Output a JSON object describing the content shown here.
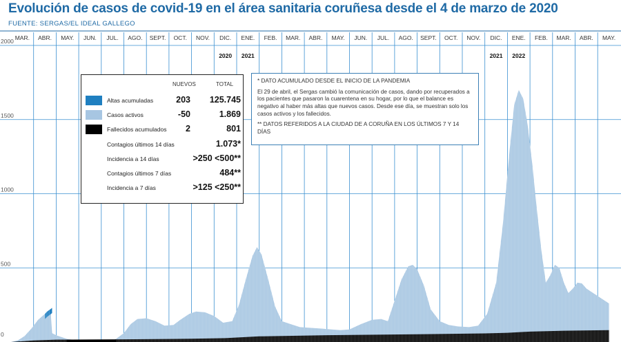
{
  "title": "Evolución de casos de covid-19 en el área sanitaria coruñesa desde el 4 de marzo de 2020",
  "source": "FUENTE: SERGAS/EL IDEAL GALLEGO",
  "colors": {
    "title": "#1f6aa5",
    "altas": "#1f7fc0",
    "activos": "#a7c6e2",
    "fallecidos": "#000000",
    "gridline": "#3a8fd0"
  },
  "legend": {
    "header_nuevos": "NUEVOS",
    "header_total": "TOTAL",
    "rows": [
      {
        "label": "Altas acumuladas",
        "nuevos": "203",
        "total": "125.745",
        "swatch": "#1f7fc0"
      },
      {
        "label": "Casos activos",
        "nuevos": "-50",
        "total": "1.869",
        "swatch": "#a7c6e2"
      },
      {
        "label": "Fallecidos acumulados",
        "nuevos": "2",
        "total": "801",
        "swatch": "#000000"
      },
      {
        "label": "Contagios últimos 14 días",
        "nuevos": "",
        "total": "1.073*",
        "swatch": ""
      },
      {
        "label": "Incidencia a 14 días",
        "nuevos": "",
        "total": ">250 <500**",
        "swatch": ""
      },
      {
        "label": "Contagios últimos 7 días",
        "nuevos": "",
        "total": "484**",
        "swatch": ""
      },
      {
        "label": "Incidencia a 7 días",
        "nuevos": "",
        "total": ">125 <250**",
        "swatch": ""
      }
    ]
  },
  "notes": [
    "* DATO ACUMULADO DESDE EL INICIO DE LA PANDEMIA",
    "El 29 de abril, el Sergas cambió la comunicación de casos, dando por recuperados a los pacientes que pasaron la cuarentena en su hogar, por lo que el balance es negativo al haber más altas que nuevos casos. Desde ese día, se muestran solo los casos activos y los fallecidos.",
    "** DATOS REFERIDOS A LA CIUDAD DE A CORUÑA EN LOS ÚLTIMOS 7 Y 14 DÍAS"
  ],
  "chart_data": {
    "type": "area",
    "title": "Evolución de casos de covid-19 en el área sanitaria coruñesa desde el 4 de marzo de 2020",
    "x_unit": "mes",
    "months": [
      "MAR.",
      "ABR.",
      "MAY.",
      "JUN.",
      "JUL.",
      "AGO.",
      "SEPT.",
      "OCT.",
      "NOV.",
      "DIC.",
      "ENE.",
      "FEB.",
      "MAR.",
      "ABR.",
      "MAY.",
      "JUN.",
      "JUL.",
      "AGO.",
      "SEPT.",
      "OCT.",
      "NOV.",
      "DIC.",
      "ENE.",
      "FEB.",
      "MAR.",
      "ABR.",
      "MAY."
    ],
    "year_labels": [
      {
        "month_index": 9,
        "label": "2020"
      },
      {
        "month_index": 10,
        "label": "2021"
      },
      {
        "month_index": 21,
        "label": "2021"
      },
      {
        "month_index": 22,
        "label": "2022"
      }
    ],
    "y_ticks": [
      0,
      500,
      1000,
      1500,
      2000
    ],
    "ylim": [
      0,
      2000
    ],
    "grid": true,
    "series": [
      {
        "name": "Casos activos",
        "color": "#a7c6e2",
        "points": [
          [
            0,
            0
          ],
          [
            0.3,
            10
          ],
          [
            0.6,
            40
          ],
          [
            0.9,
            90
          ],
          [
            1.2,
            150
          ],
          [
            1.5,
            190
          ],
          [
            1.75,
            220
          ],
          [
            1.82,
            60
          ],
          [
            2.0,
            45
          ],
          [
            2.5,
            20
          ],
          [
            3.0,
            10
          ],
          [
            4.0,
            6
          ],
          [
            4.6,
            15
          ],
          [
            5.0,
            60
          ],
          [
            5.3,
            120
          ],
          [
            5.6,
            155
          ],
          [
            6.0,
            160
          ],
          [
            6.4,
            140
          ],
          [
            6.8,
            110
          ],
          [
            7.2,
            115
          ],
          [
            7.5,
            150
          ],
          [
            7.9,
            190
          ],
          [
            8.2,
            205
          ],
          [
            8.6,
            200
          ],
          [
            9.0,
            175
          ],
          [
            9.4,
            130
          ],
          [
            9.8,
            140
          ],
          [
            10.1,
            250
          ],
          [
            10.4,
            420
          ],
          [
            10.7,
            580
          ],
          [
            10.9,
            640
          ],
          [
            11.1,
            590
          ],
          [
            11.4,
            420
          ],
          [
            11.7,
            240
          ],
          [
            12.0,
            140
          ],
          [
            12.4,
            120
          ],
          [
            12.8,
            100
          ],
          [
            13.3,
            95
          ],
          [
            13.8,
            90
          ],
          [
            14.2,
            85
          ],
          [
            14.6,
            80
          ],
          [
            15.0,
            85
          ],
          [
            15.5,
            120
          ],
          [
            16.0,
            150
          ],
          [
            16.4,
            155
          ],
          [
            16.7,
            140
          ],
          [
            17.0,
            280
          ],
          [
            17.3,
            420
          ],
          [
            17.6,
            510
          ],
          [
            17.8,
            520
          ],
          [
            18.0,
            490
          ],
          [
            18.3,
            380
          ],
          [
            18.6,
            220
          ],
          [
            19.0,
            140
          ],
          [
            19.4,
            115
          ],
          [
            19.8,
            105
          ],
          [
            20.3,
            100
          ],
          [
            20.7,
            110
          ],
          [
            21.1,
            190
          ],
          [
            21.5,
            400
          ],
          [
            21.8,
            800
          ],
          [
            22.1,
            1300
          ],
          [
            22.3,
            1600
          ],
          [
            22.5,
            1700
          ],
          [
            22.7,
            1640
          ],
          [
            22.9,
            1460
          ],
          [
            23.1,
            1200
          ],
          [
            23.3,
            900
          ],
          [
            23.5,
            620
          ],
          [
            23.7,
            400
          ],
          [
            23.9,
            450
          ],
          [
            24.1,
            520
          ],
          [
            24.3,
            500
          ],
          [
            24.5,
            400
          ],
          [
            24.7,
            330
          ],
          [
            24.9,
            360
          ],
          [
            25.1,
            400
          ],
          [
            25.3,
            395
          ],
          [
            25.5,
            360
          ],
          [
            25.7,
            340
          ],
          [
            25.9,
            320
          ],
          [
            26.2,
            290
          ],
          [
            26.5,
            260
          ]
        ]
      },
      {
        "name": "Fallecidos acumulados",
        "color": "#000000",
        "points": [
          [
            0,
            0
          ],
          [
            1.0,
            10
          ],
          [
            2.0,
            16
          ],
          [
            5.0,
            18
          ],
          [
            8.0,
            22
          ],
          [
            9.5,
            26
          ],
          [
            11.0,
            38
          ],
          [
            14.0,
            46
          ],
          [
            18.0,
            52
          ],
          [
            21.0,
            58
          ],
          [
            22.0,
            62
          ],
          [
            23.0,
            70
          ],
          [
            24.5,
            76
          ],
          [
            26.5,
            80
          ]
        ]
      },
      {
        "name": "Altas acumuladas",
        "color": "#1f7fc0",
        "points": [
          [
            1.5,
            190
          ],
          [
            1.6,
            205
          ],
          [
            1.75,
            222
          ],
          [
            1.82,
            230
          ]
        ]
      }
    ]
  }
}
